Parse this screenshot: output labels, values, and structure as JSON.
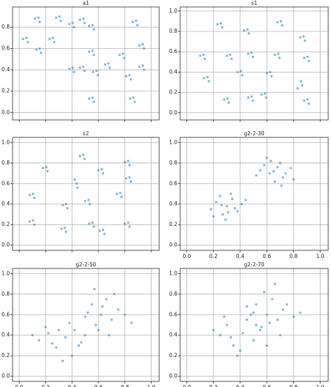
{
  "chart_data": [
    {
      "type": "scatter",
      "title": "a1",
      "color": "#1f77b4",
      "grid": true,
      "xlim": [
        -0.05,
        1.06
      ],
      "ylim": [
        -0.07,
        0.99
      ],
      "xticks": [
        0,
        0.2,
        0.4,
        0.6,
        0.8,
        1
      ],
      "yticks": [
        {
          "value": 0,
          "label": "0.0"
        },
        {
          "value": 0.2,
          "label": "0.2"
        },
        {
          "value": 0.4,
          "label": "0.4"
        },
        {
          "value": 0.6,
          "label": "0.6"
        },
        {
          "value": 0.8,
          "label": "0.8"
        }
      ],
      "x": [
        0.03,
        0.065,
        0.055,
        0.13,
        0.165,
        0.155,
        0.12,
        0.155,
        0.145,
        0.23,
        0.265,
        0.255,
        0.28,
        0.315,
        0.305,
        0.38,
        0.415,
        0.405,
        0.46,
        0.495,
        0.485,
        0.53,
        0.565,
        0.555,
        0.53,
        0.565,
        0.555,
        0.38,
        0.415,
        0.405,
        0.46,
        0.495,
        0.485,
        0.56,
        0.595,
        0.585,
        0.53,
        0.565,
        0.555,
        0.65,
        0.685,
        0.675,
        0.76,
        0.795,
        0.785,
        0.81,
        0.845,
        0.835,
        0.84,
        0.875,
        0.865,
        0.86,
        0.895,
        0.885,
        0.91,
        0.945,
        0.935,
        0.91,
        0.945,
        0.935
      ],
      "y": [
        0.69,
        0.66,
        0.7,
        0.59,
        0.56,
        0.6,
        0.88,
        0.85,
        0.89,
        0.69,
        0.66,
        0.7,
        0.89,
        0.86,
        0.9,
        0.83,
        0.8,
        0.84,
        0.87,
        0.84,
        0.88,
        0.81,
        0.78,
        0.82,
        0.57,
        0.54,
        0.58,
        0.41,
        0.38,
        0.42,
        0.42,
        0.39,
        0.43,
        0.38,
        0.35,
        0.39,
        0.13,
        0.1,
        0.14,
        0.45,
        0.42,
        0.46,
        0.54,
        0.51,
        0.55,
        0.34,
        0.31,
        0.35,
        0.13,
        0.1,
        0.14,
        0.85,
        0.82,
        0.86,
        0.63,
        0.6,
        0.64,
        0.43,
        0.4,
        0.44
      ]
    },
    {
      "type": "scatter",
      "title": "s1",
      "color": "#1f77b4",
      "grid": true,
      "xlim": [
        -0.05,
        1.06
      ],
      "ylim": [
        -0.07,
        1.04
      ],
      "xticks": [
        0,
        0.2,
        0.4,
        0.6,
        0.8,
        1
      ],
      "yticks": [
        {
          "value": 0,
          "label": "0.0"
        },
        {
          "value": 0.2,
          "label": "0.2"
        },
        {
          "value": 0.4,
          "label": "0.4"
        },
        {
          "value": 0.6,
          "label": "0.6"
        },
        {
          "value": 0.8,
          "label": "0.8"
        },
        {
          "value": 1,
          "label": "1.0"
        }
      ],
      "x": [
        0.23,
        0.265,
        0.255,
        0.43,
        0.465,
        0.455,
        0.68,
        0.715,
        0.705,
        0.85,
        0.885,
        0.875,
        0.1,
        0.135,
        0.125,
        0.3,
        0.335,
        0.325,
        0.46,
        0.495,
        0.485,
        0.66,
        0.695,
        0.685,
        0.88,
        0.915,
        0.905,
        0.13,
        0.165,
        0.155,
        0.38,
        0.415,
        0.405,
        0.6,
        0.635,
        0.625,
        0.28,
        0.315,
        0.305,
        0.46,
        0.495,
        0.485,
        0.56,
        0.595,
        0.585,
        0.83,
        0.865,
        0.855,
        0.88,
        0.915,
        0.905
      ],
      "y": [
        0.87,
        0.84,
        0.88,
        0.81,
        0.78,
        0.82,
        0.89,
        0.86,
        0.9,
        0.74,
        0.71,
        0.75,
        0.56,
        0.53,
        0.57,
        0.56,
        0.53,
        0.57,
        0.58,
        0.55,
        0.59,
        0.57,
        0.54,
        0.58,
        0.54,
        0.51,
        0.55,
        0.34,
        0.31,
        0.35,
        0.4,
        0.37,
        0.41,
        0.39,
        0.36,
        0.4,
        0.13,
        0.1,
        0.14,
        0.15,
        0.12,
        0.16,
        0.18,
        0.15,
        0.19,
        0.24,
        0.27,
        0.31,
        0.12,
        0.09,
        0.13
      ]
    },
    {
      "type": "scatter",
      "title": "s2",
      "color": "#1f77b4",
      "grid": true,
      "xlim": [
        -0.05,
        1.06
      ],
      "ylim": [
        -0.05,
        1.05
      ],
      "xticks": [
        0,
        0.2,
        0.4,
        0.6,
        0.8,
        1
      ],
      "yticks": [
        {
          "value": 0,
          "label": "0.0"
        },
        {
          "value": 0.2,
          "label": "0.2"
        },
        {
          "value": 0.4,
          "label": "0.4"
        },
        {
          "value": 0.6,
          "label": "0.6"
        },
        {
          "value": 0.8,
          "label": "0.8"
        },
        {
          "value": 1,
          "label": "1.0"
        }
      ],
      "x": [
        0.18,
        0.215,
        0.205,
        0.46,
        0.495,
        0.485,
        0.6,
        0.635,
        0.625,
        0.8,
        0.835,
        0.825,
        0.81,
        0.845,
        0.835,
        0.08,
        0.115,
        0.105,
        0.33,
        0.365,
        0.355,
        0.42,
        0.44,
        0.435,
        0.5,
        0.535,
        0.525,
        0.74,
        0.775,
        0.765,
        0.08,
        0.115,
        0.105,
        0.32,
        0.355,
        0.345,
        0.53,
        0.565,
        0.555,
        0.61,
        0.645,
        0.635,
        0.8,
        0.835,
        0.825
      ],
      "y": [
        0.75,
        0.72,
        0.76,
        0.87,
        0.84,
        0.88,
        0.73,
        0.7,
        0.74,
        0.81,
        0.78,
        0.82,
        0.65,
        0.62,
        0.66,
        0.49,
        0.46,
        0.5,
        0.39,
        0.36,
        0.4,
        0.64,
        0.56,
        0.6,
        0.43,
        0.4,
        0.44,
        0.5,
        0.47,
        0.51,
        0.23,
        0.2,
        0.24,
        0.16,
        0.13,
        0.17,
        0.21,
        0.18,
        0.22,
        0.14,
        0.11,
        0.15,
        0.21,
        0.18,
        0.22
      ]
    },
    {
      "type": "scatter",
      "title": "g2-2-30",
      "color": "#1f77b4",
      "grid": true,
      "xlim": [
        -0.05,
        1.06
      ],
      "ylim": [
        -0.05,
        1.05
      ],
      "xticks": [
        {
          "value": 0,
          "label": "0.0"
        },
        {
          "value": 0.2,
          "label": "0.2"
        },
        {
          "value": 0.4,
          "label": "0.4"
        },
        {
          "value": 0.6,
          "label": "0.6"
        },
        {
          "value": 0.8,
          "label": "0.8"
        },
        {
          "value": 1,
          "label": "1.0"
        }
      ],
      "yticks": [
        {
          "value": 0,
          "label": "0.0"
        },
        {
          "value": 0.2,
          "label": "0.2"
        },
        {
          "value": 0.4,
          "label": "0.4"
        },
        {
          "value": 0.6,
          "label": "0.6"
        },
        {
          "value": 0.8,
          "label": "0.8"
        },
        {
          "value": 1,
          "label": "1.0"
        }
      ],
      "x": [
        0.3,
        0.22,
        0.38,
        0.27,
        0.34,
        0.18,
        0.41,
        0.29,
        0.25,
        0.36,
        0.31,
        0.2,
        0.44,
        0.33,
        0.26,
        0.65,
        0.58,
        0.72,
        0.62,
        0.7,
        0.55,
        0.78,
        0.66,
        0.6,
        0.74,
        0.68,
        0.52,
        0.8,
        0.63,
        0.71
      ],
      "y": [
        0.38,
        0.42,
        0.33,
        0.3,
        0.45,
        0.35,
        0.4,
        0.25,
        0.48,
        0.36,
        0.32,
        0.28,
        0.44,
        0.5,
        0.39,
        0.72,
        0.78,
        0.66,
        0.7,
        0.8,
        0.73,
        0.75,
        0.62,
        0.85,
        0.7,
        0.76,
        0.68,
        0.64,
        0.82,
        0.58
      ]
    },
    {
      "type": "scatter",
      "title": "g2-2-50",
      "color": "#1f77b4",
      "grid": true,
      "xlim": [
        -0.05,
        1.06
      ],
      "ylim": [
        -0.05,
        1.05
      ],
      "xticks": [
        {
          "value": 0,
          "label": "0.0"
        },
        {
          "value": 0.2,
          "label": "0.2"
        },
        {
          "value": 0.4,
          "label": "0.4"
        },
        {
          "value": 0.6,
          "label": "0.6"
        },
        {
          "value": 0.8,
          "label": "0.8"
        },
        {
          "value": 1,
          "label": "1.0"
        }
      ],
      "yticks": [
        {
          "value": 0,
          "label": "0.0"
        },
        {
          "value": 0.2,
          "label": "0.2"
        },
        {
          "value": 0.4,
          "label": "0.4"
        },
        {
          "value": 0.6,
          "label": "0.6"
        },
        {
          "value": 0.8,
          "label": "0.8"
        },
        {
          "value": 1,
          "label": "1.0"
        }
      ],
      "x": [
        0.35,
        0.22,
        0.45,
        0.3,
        0.4,
        0.15,
        0.5,
        0.28,
        0.38,
        0.25,
        0.42,
        0.1,
        0.33,
        0.47,
        0.2,
        0.62,
        0.55,
        0.7,
        0.58,
        0.75,
        0.5,
        0.66,
        0.8,
        0.6,
        0.72,
        0.52,
        0.68,
        0.85,
        0.63,
        0.57
      ],
      "y": [
        0.38,
        0.42,
        0.3,
        0.45,
        0.2,
        0.35,
        0.4,
        0.28,
        0.52,
        0.32,
        0.45,
        0.4,
        0.15,
        0.33,
        0.48,
        0.6,
        0.7,
        0.55,
        0.5,
        0.65,
        0.58,
        0.75,
        0.6,
        0.45,
        0.8,
        0.62,
        0.4,
        0.52,
        0.68,
        0.85
      ]
    },
    {
      "type": "scatter",
      "title": "g2-2-70",
      "color": "#1f77b4",
      "grid": true,
      "xlim": [
        -0.05,
        1.06
      ],
      "ylim": [
        -0.05,
        1.05
      ],
      "xticks": [
        {
          "value": 0,
          "label": "0.0"
        },
        {
          "value": 0.2,
          "label": "0.2"
        },
        {
          "value": 0.4,
          "label": "0.4"
        },
        {
          "value": 0.6,
          "label": "0.6"
        },
        {
          "value": 0.8,
          "label": "0.8"
        },
        {
          "value": 1,
          "label": "1.0"
        }
      ],
      "yticks": [
        {
          "value": 0,
          "label": "0.0"
        },
        {
          "value": 0.2,
          "label": "0.2"
        },
        {
          "value": 0.4,
          "label": "0.4"
        },
        {
          "value": 0.6,
          "label": "0.6"
        },
        {
          "value": 0.8,
          "label": "0.8"
        },
        {
          "value": 1,
          "label": "1.0"
        }
      ],
      "x": [
        0.42,
        0.3,
        0.5,
        0.35,
        0.45,
        0.25,
        0.55,
        0.38,
        0.2,
        0.48,
        0.33,
        0.6,
        0.4,
        0.28,
        0.52,
        0.6,
        0.52,
        0.68,
        0.56,
        0.72,
        0.64,
        0.8,
        0.58,
        0.7,
        0.5,
        0.66,
        0.75,
        0.62,
        0.85,
        0.45
      ],
      "y": [
        0.42,
        0.5,
        0.35,
        0.3,
        0.55,
        0.4,
        0.45,
        0.2,
        0.45,
        0.6,
        0.38,
        0.3,
        0.25,
        0.58,
        0.5,
        0.6,
        0.7,
        0.55,
        0.48,
        0.65,
        0.75,
        0.58,
        0.82,
        0.4,
        0.62,
        0.9,
        0.7,
        0.52,
        0.62,
        0.68
      ]
    }
  ]
}
